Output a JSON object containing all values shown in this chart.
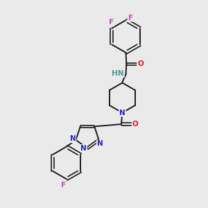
{
  "background_color": "#eaeaea",
  "bond_color": "#1a1a1a",
  "N_color": "#2222cc",
  "O_color": "#cc2020",
  "F_color": "#cc44cc",
  "H_color": "#4a9a9a",
  "figsize": [
    3.0,
    3.0
  ],
  "dpi": 100,
  "xlim": [
    0,
    10
  ],
  "ylim": [
    0,
    10
  ]
}
